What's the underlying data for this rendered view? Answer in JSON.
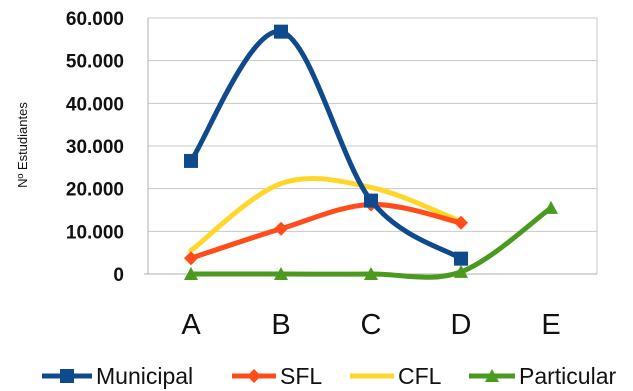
{
  "chart_data": {
    "type": "line",
    "ylabel": "Nº Estudiantes",
    "categories": [
      "A",
      "B",
      "C",
      "D",
      "E"
    ],
    "ylim": [
      0,
      60000
    ],
    "yticks": [
      0,
      10000,
      20000,
      30000,
      40000,
      50000,
      60000
    ],
    "ytick_labels": [
      "0",
      "10.000",
      "20.000",
      "30.000",
      "40.000",
      "50.000",
      "60.000"
    ],
    "grid": "horizontal",
    "legend_position": "bottom",
    "smooth": true,
    "series": [
      {
        "name": "Municipal",
        "color": "#0e4a8c",
        "marker": "square",
        "values": [
          26500,
          56800,
          17200,
          3600,
          null
        ]
      },
      {
        "name": "SFL",
        "color": "#ff4c18",
        "marker": "diamond",
        "values": [
          3700,
          10600,
          16300,
          12000,
          null
        ]
      },
      {
        "name": "CFL",
        "color": "#ffd62a",
        "marker": "none",
        "values": [
          5500,
          21200,
          20300,
          12300,
          null
        ]
      },
      {
        "name": "Particular",
        "color": "#4a9a20",
        "marker": "triangle",
        "values": [
          0,
          0,
          0,
          500,
          15500
        ]
      }
    ]
  }
}
